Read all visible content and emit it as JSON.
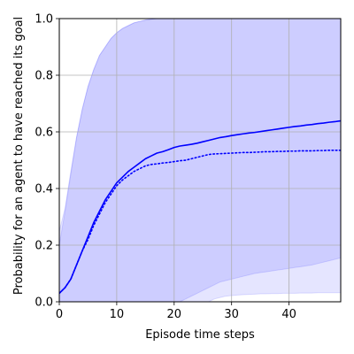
{
  "chart_data": {
    "type": "line",
    "xlabel": "Episode time steps",
    "ylabel": "Probability for an agent to have reached its goal",
    "xlim": [
      0,
      49
    ],
    "ylim": [
      0.0,
      1.0
    ],
    "xticks": [
      0,
      10,
      20,
      30,
      40
    ],
    "xtick_labels": [
      "0",
      "10",
      "20",
      "30",
      "40"
    ],
    "yticks": [
      0.0,
      0.2,
      0.4,
      0.6,
      0.8,
      1.0
    ],
    "ytick_labels": [
      "0.0",
      "0.2",
      "0.4",
      "0.6",
      "0.8",
      "1.0"
    ],
    "grid": true,
    "legend": "none",
    "colors": {
      "line": "#0000ff",
      "band": "#0000ff",
      "grid": "#b0b0b0"
    },
    "x": [
      0,
      1,
      2,
      3,
      4,
      5,
      6,
      7,
      8,
      9,
      10,
      11,
      12,
      13,
      14,
      15,
      16,
      17,
      18,
      19,
      20,
      21,
      22,
      23,
      24,
      25,
      26,
      27,
      28,
      29,
      30,
      31,
      32,
      33,
      34,
      35,
      36,
      37,
      38,
      39,
      40,
      41,
      42,
      43,
      44,
      45,
      46,
      47,
      48,
      49
    ],
    "series": [
      {
        "style": "solid",
        "values": [
          0.03,
          0.05,
          0.08,
          0.13,
          0.18,
          0.23,
          0.28,
          0.32,
          0.36,
          0.39,
          0.42,
          0.44,
          0.46,
          0.475,
          0.49,
          0.505,
          0.515,
          0.525,
          0.53,
          0.537,
          0.545,
          0.55,
          0.553,
          0.556,
          0.56,
          0.565,
          0.57,
          0.575,
          0.58,
          0.583,
          0.587,
          0.59,
          0.593,
          0.596,
          0.598,
          0.601,
          0.604,
          0.607,
          0.61,
          0.613,
          0.616,
          0.619,
          0.621,
          0.624,
          0.626,
          0.629,
          0.631,
          0.634,
          0.636,
          0.639
        ],
        "band_upper": [
          0.2,
          0.32,
          0.45,
          0.58,
          0.68,
          0.76,
          0.82,
          0.87,
          0.9,
          0.93,
          0.95,
          0.965,
          0.975,
          0.985,
          0.99,
          0.995,
          0.998,
          1.0,
          1.0,
          1.0,
          1.0,
          1.0,
          1.0,
          1.0,
          1.0,
          1.0,
          1.0,
          1.0,
          1.0,
          1.0,
          1.0,
          1.0,
          1.0,
          1.0,
          1.0,
          1.0,
          1.0,
          1.0,
          1.0,
          1.0,
          1.0,
          1.0,
          1.0,
          1.0,
          1.0,
          1.0,
          1.0,
          1.0,
          1.0,
          1.0
        ],
        "band_lower": [
          0.0,
          0.0,
          0.0,
          0.0,
          0.0,
          0.0,
          0.0,
          0.0,
          0.0,
          0.0,
          0.0,
          0.0,
          0.0,
          0.0,
          0.0,
          0.0,
          0.0,
          0.0,
          0.0,
          0.0,
          0.0,
          0.0,
          0.01,
          0.02,
          0.03,
          0.04,
          0.05,
          0.06,
          0.07,
          0.075,
          0.08,
          0.085,
          0.09,
          0.095,
          0.1,
          0.103,
          0.106,
          0.109,
          0.112,
          0.115,
          0.118,
          0.121,
          0.124,
          0.127,
          0.13,
          0.135,
          0.14,
          0.145,
          0.15,
          0.155
        ]
      },
      {
        "style": "dotted",
        "values": [
          0.03,
          0.05,
          0.08,
          0.13,
          0.18,
          0.22,
          0.27,
          0.31,
          0.35,
          0.38,
          0.41,
          0.43,
          0.445,
          0.46,
          0.47,
          0.48,
          0.485,
          0.487,
          0.49,
          0.492,
          0.495,
          0.498,
          0.5,
          0.505,
          0.51,
          0.515,
          0.52,
          0.522,
          0.523,
          0.524,
          0.525,
          0.526,
          0.527,
          0.527,
          0.528,
          0.529,
          0.53,
          0.53,
          0.531,
          0.531,
          0.532,
          0.532,
          0.533,
          0.533,
          0.533,
          0.534,
          0.534,
          0.535,
          0.535,
          0.535
        ],
        "band_upper": [
          0.25,
          0.33,
          0.46,
          0.58,
          0.68,
          0.76,
          0.82,
          0.87,
          0.9,
          0.93,
          0.95,
          0.965,
          0.975,
          0.985,
          0.99,
          0.995,
          0.998,
          1.0,
          1.0,
          1.0,
          1.0,
          1.0,
          1.0,
          1.0,
          1.0,
          1.0,
          1.0,
          1.0,
          1.0,
          1.0,
          1.0,
          1.0,
          1.0,
          1.0,
          1.0,
          1.0,
          1.0,
          1.0,
          1.0,
          1.0,
          1.0,
          1.0,
          1.0,
          1.0,
          1.0,
          1.0,
          1.0,
          1.0,
          1.0,
          1.0
        ],
        "band_lower": [
          0.0,
          0.0,
          0.0,
          0.0,
          0.0,
          0.0,
          0.0,
          0.0,
          0.0,
          0.0,
          0.0,
          0.0,
          0.0,
          0.0,
          0.0,
          0.0,
          0.0,
          0.0,
          0.0,
          0.0,
          0.0,
          0.0,
          0.0,
          0.0,
          0.0,
          0.0,
          0.0,
          0.01,
          0.015,
          0.02,
          0.022,
          0.024,
          0.025,
          0.026,
          0.027,
          0.028,
          0.028,
          0.029,
          0.029,
          0.03,
          0.03,
          0.03,
          0.031,
          0.031,
          0.031,
          0.032,
          0.032,
          0.032,
          0.032,
          0.032
        ]
      }
    ]
  }
}
